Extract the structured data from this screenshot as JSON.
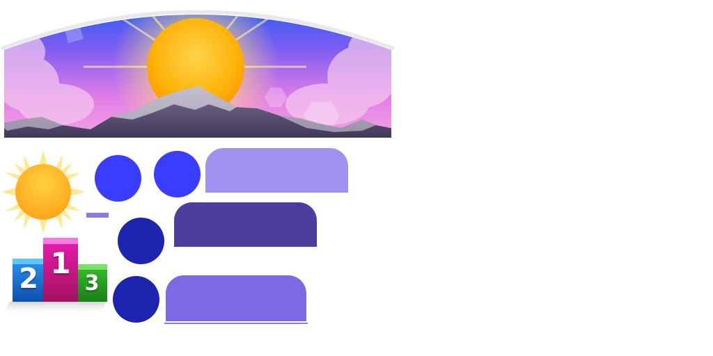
{
  "colors": {
    "circle_light": "#3a3cff",
    "circle_dark": "#1c24b0",
    "panel_light": "#a191ee",
    "panel_dark": "#4b3e9f",
    "panel_mid": "#7b6ae2",
    "dash": "#8b7ae6"
  },
  "icons": [
    "sunrise-banner",
    "sun-icon",
    "podium-icon"
  ],
  "podium": {
    "first": "1",
    "second": "2",
    "third": "3"
  }
}
